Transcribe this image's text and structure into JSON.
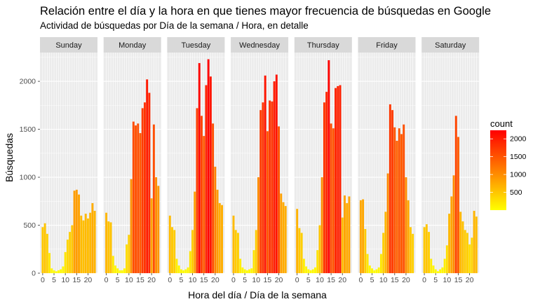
{
  "chart_data": {
    "type": "bar",
    "title": "Relación entre el día y la hora en que tienes mayor frecuencia de búsquedas en Google",
    "subtitle": "Actividad de búsquedas por Día de la semana / Hora, en detalle",
    "xlabel": "Hora del día / Día de la semana",
    "ylabel": "Búsquedas",
    "ylim": [
      0,
      2300
    ],
    "y_ticks": [
      0,
      500,
      1000,
      1500,
      2000
    ],
    "x_ticks": [
      0,
      5,
      10,
      15,
      20
    ],
    "x": [
      0,
      1,
      2,
      3,
      4,
      5,
      6,
      7,
      8,
      9,
      10,
      11,
      12,
      13,
      14,
      15,
      16,
      17,
      18,
      19,
      20,
      21,
      22,
      23
    ],
    "facets": [
      {
        "name": "Sunday",
        "values": [
          480,
          520,
          410,
          210,
          50,
          30,
          20,
          30,
          40,
          70,
          220,
          350,
          430,
          500,
          860,
          870,
          820,
          600,
          550,
          620,
          570,
          630,
          730,
          650
        ]
      },
      {
        "name": "Monday",
        "values": [
          630,
          540,
          530,
          180,
          80,
          50,
          30,
          30,
          50,
          300,
          400,
          980,
          1580,
          1540,
          1560,
          1460,
          1720,
          1780,
          2020,
          1880,
          780,
          1550,
          1000,
          910
        ]
      },
      {
        "name": "Tuesday",
        "values": [
          600,
          480,
          450,
          150,
          80,
          40,
          30,
          40,
          60,
          230,
          450,
          850,
          1720,
          2190,
          1640,
          1430,
          1960,
          2230,
          2050,
          1560,
          1110,
          870,
          730,
          710
        ]
      },
      {
        "name": "Wednesday",
        "values": [
          600,
          450,
          420,
          150,
          60,
          40,
          30,
          40,
          50,
          240,
          450,
          1000,
          1700,
          1780,
          2060,
          1480,
          1800,
          1790,
          2000,
          2070,
          1530,
          830,
          740,
          700
        ]
      },
      {
        "name": "Thursday",
        "values": [
          670,
          470,
          420,
          150,
          70,
          40,
          30,
          40,
          60,
          240,
          500,
          1000,
          1780,
          1890,
          2220,
          1560,
          1510,
          1930,
          1950,
          1960,
          580,
          810,
          730,
          800
        ]
      },
      {
        "name": "Friday",
        "values": [
          760,
          770,
          460,
          200,
          80,
          50,
          30,
          40,
          60,
          200,
          420,
          640,
          1040,
          1760,
          1700,
          1520,
          1380,
          1510,
          1450,
          1550,
          1000,
          760,
          480,
          410
        ]
      },
      {
        "name": "Saturday",
        "values": [
          480,
          510,
          430,
          150,
          80,
          40,
          20,
          40,
          60,
          150,
          290,
          620,
          800,
          1020,
          1640,
          1420,
          640,
          540,
          450,
          420,
          300,
          370,
          650,
          590
        ]
      }
    ],
    "legend": {
      "title": "count",
      "ticks": [
        500,
        1000,
        1500,
        2000
      ],
      "min": 0,
      "max": 2240,
      "low_color": "#ffff00",
      "high_color": "#ff0000",
      "placement": "right"
    },
    "colors": {
      "panel_bg": "#ebebeb",
      "grid": "#ffffff",
      "strip_bg": "#d9d9d9",
      "page_bg": "#ffffff"
    }
  }
}
